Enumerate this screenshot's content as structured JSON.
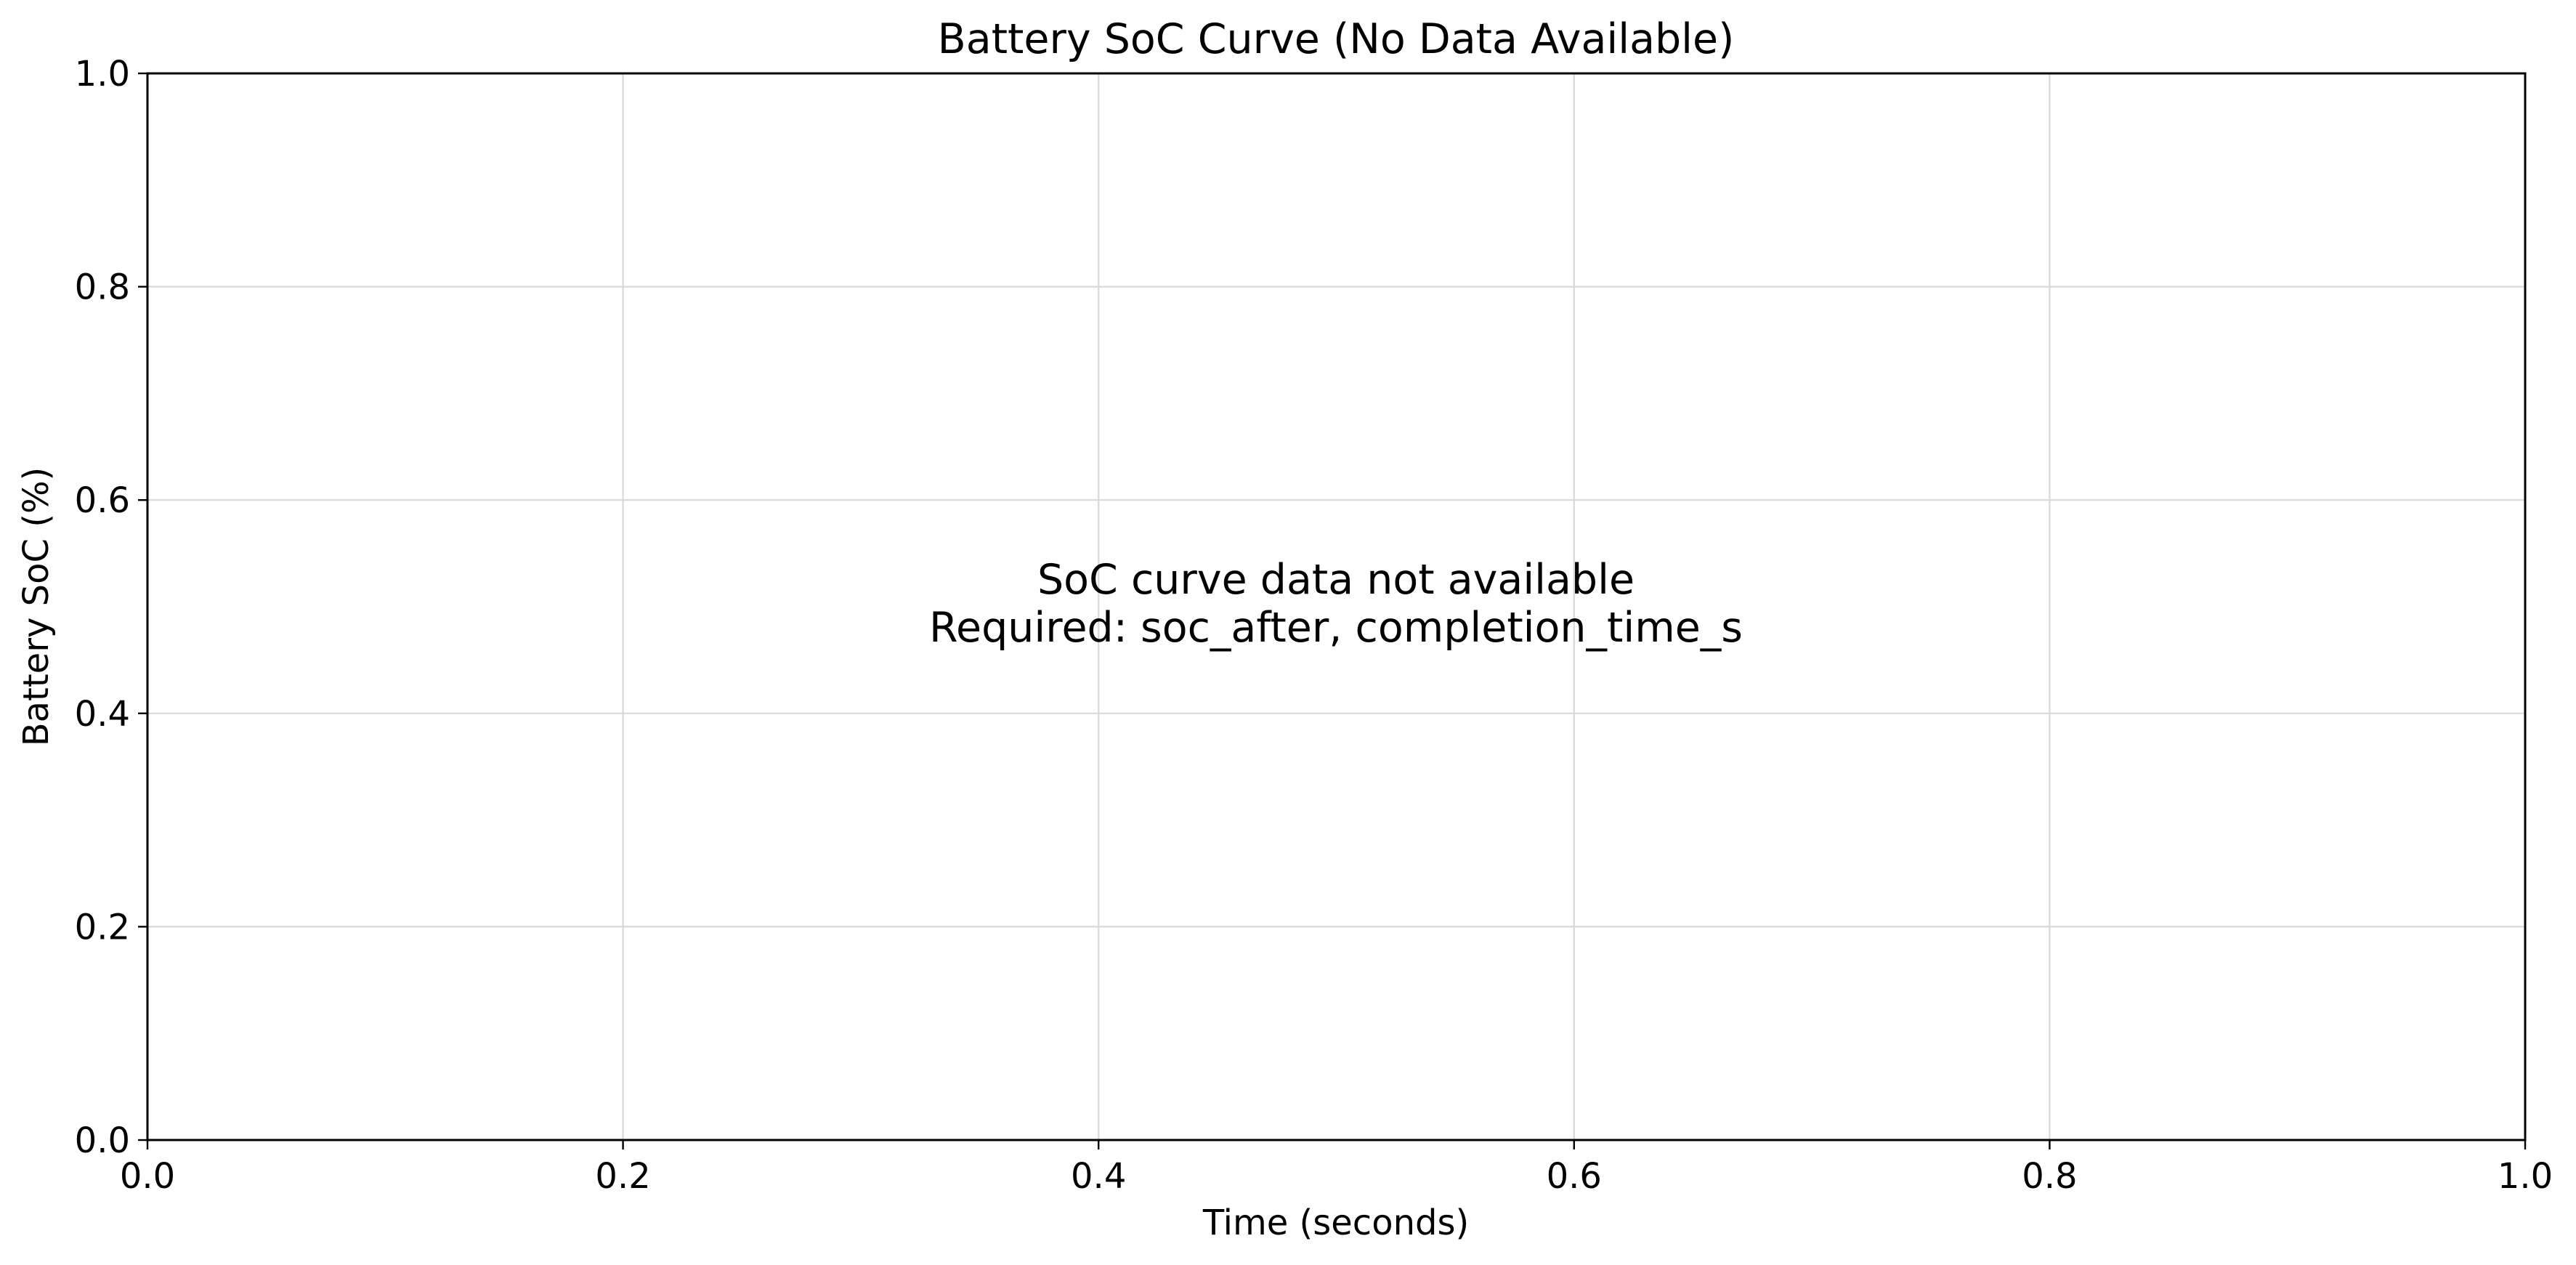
{
  "chart_data": {
    "type": "line",
    "title": "Battery SoC Curve (No Data Available)",
    "xlabel": "Time (seconds)",
    "ylabel": "Battery SoC (%)",
    "xlim": [
      0.0,
      1.0
    ],
    "ylim": [
      0.0,
      1.0
    ],
    "xticks": [
      "0.0",
      "0.2",
      "0.4",
      "0.6",
      "0.8",
      "1.0"
    ],
    "yticks": [
      "0.0",
      "0.2",
      "0.4",
      "0.6",
      "0.8",
      "1.0"
    ],
    "grid": true,
    "series": [],
    "annotation": {
      "lines": [
        "SoC curve data not available",
        "Required: soc_after, completion_time_s"
      ]
    }
  }
}
